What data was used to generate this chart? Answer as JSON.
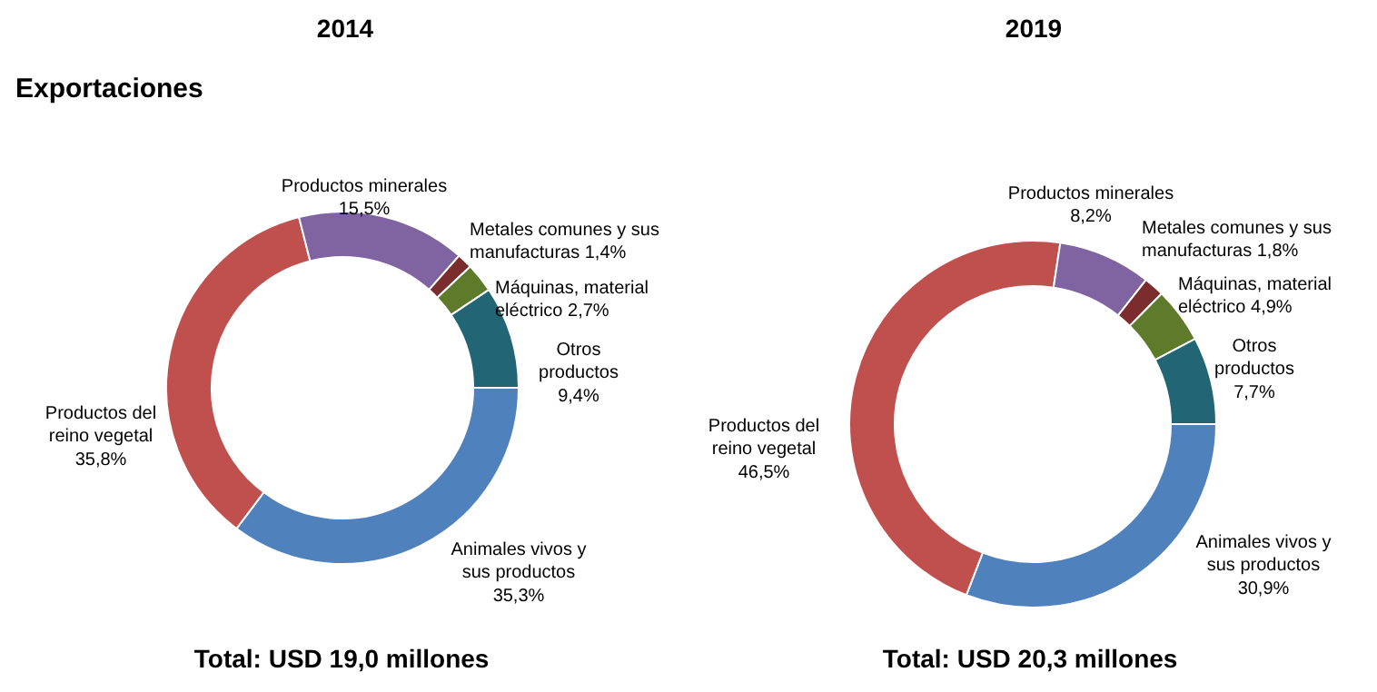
{
  "chart_data": [
    {
      "type": "donut",
      "title": "2014",
      "subtitle": "Exportaciones",
      "categories": [
        "Animales vivos y sus productos",
        "Productos del reino vegetal",
        "Productos minerales",
        "Metales comunes y sus manufacturas",
        "Máquinas, material eléctrico",
        "Otros productos"
      ],
      "values": [
        35.3,
        35.8,
        15.5,
        1.4,
        2.7,
        9.4
      ],
      "value_labels": [
        "35,3%",
        "35,8%",
        "15,5%",
        "1,4%",
        "2,7%",
        "9,4%"
      ],
      "colors": [
        "#4f81bd",
        "#c0504d",
        "#8064a2",
        "#7b2c2c",
        "#5e7b2c",
        "#226574"
      ],
      "annotations": [
        "Total:  USD 19,0 millones"
      ]
    },
    {
      "type": "donut",
      "title": "2019",
      "categories": [
        "Animales vivos y sus productos",
        "Productos del reino vegetal",
        "Productos minerales",
        "Metales comunes y sus manufacturas",
        "Máquinas, material eléctrico",
        "Otros productos"
      ],
      "values": [
        30.9,
        46.5,
        8.2,
        1.8,
        4.9,
        7.7
      ],
      "value_labels": [
        "30,9%",
        "46,5%",
        "8,2%",
        "1,8%",
        "4,9%",
        "7,7%"
      ],
      "colors": [
        "#4f81bd",
        "#c0504d",
        "#8064a2",
        "#7b2c2c",
        "#5e7b2c",
        "#226574"
      ],
      "annotations": [
        "Total:  USD 20,3 millones"
      ]
    }
  ]
}
